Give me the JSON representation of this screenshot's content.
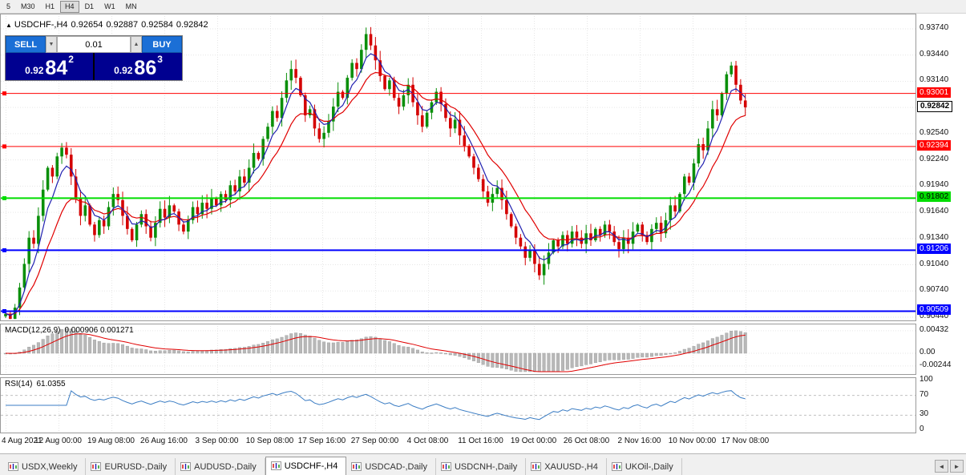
{
  "toolbar": {
    "timeframes": [
      "5",
      "M30",
      "H1",
      "H4",
      "D1",
      "W1",
      "MN"
    ],
    "active": "H4"
  },
  "icons": {
    "panel_toggle": "▲",
    "spin_up": "▲",
    "spin_down": "▼",
    "tabs_left": "◄",
    "tabs_right": "►"
  },
  "chart": {
    "symbol_period": "USDCHF-,H4",
    "ohlc": {
      "open": "0.92654",
      "high": "0.92887",
      "low": "0.92584",
      "close": "0.92842"
    }
  },
  "trade_panel": {
    "sell_label": "SELL",
    "buy_label": "BUY",
    "volume": "0.01",
    "sell_price": {
      "prefix": "0.92",
      "big": "84",
      "sup": "2"
    },
    "buy_price": {
      "prefix": "0.92",
      "big": "86",
      "sup": "3"
    }
  },
  "macd": {
    "title": "MACD(12,26,9)",
    "values_text": "0.000906 0.001271",
    "fast": 12,
    "slow": 26,
    "signal": 9,
    "axis": [
      {
        "label": "0.00432",
        "value": 0.00432
      },
      {
        "label": "0.00",
        "value": 0
      },
      {
        "label": "-0.00244",
        "value": -0.00244
      }
    ]
  },
  "rsi": {
    "title": "RSI(14)",
    "value_text": "61.0355",
    "period": 14,
    "levels": [
      70,
      30
    ],
    "axis": [
      {
        "label": "100",
        "value": 100
      },
      {
        "label": "70",
        "value": 70
      },
      {
        "label": "30",
        "value": 30
      },
      {
        "label": "0",
        "value": 0
      }
    ]
  },
  "colors": {
    "up": "#0a8f0a",
    "down": "#d40000",
    "ma_fast": "#2020b0",
    "ma_slow": "#e00000",
    "macd_hist": "#b8b8b8",
    "macd_hist_edge": "#9a9a9a",
    "macd_signal": "#e00000",
    "rsi_line": "#3b7dc4",
    "grid": "#e6e6e6",
    "line_red": "#ff0000",
    "line_green": "#00dd00",
    "line_blue": "#0000ff",
    "buy_sell_blue": "#1b6fd6",
    "price_navy": "#000090"
  },
  "hlines": [
    {
      "price": 0.93001,
      "label": "0.93001",
      "color": "#ff0000",
      "thickness": 1,
      "text_color": "#ffffff"
    },
    {
      "price": 0.92394,
      "label": "0.92394",
      "color": "#ff0000",
      "thickness": 1,
      "text_color": "#ffffff"
    },
    {
      "price": 0.91802,
      "label": "0.91802",
      "color": "#00dd00",
      "thickness": 2,
      "text_color": "#000000"
    },
    {
      "price": 0.91206,
      "label": "0.91206",
      "color": "#0000ff",
      "thickness": 2,
      "text_color": "#ffffff"
    },
    {
      "price": 0.90509,
      "label": "0.90509",
      "color": "#0000ff",
      "thickness": 2,
      "text_color": "#ffffff"
    }
  ],
  "current_price": {
    "label": "0.92842",
    "value": 0.92842
  },
  "chart_data": {
    "type": "candlestick",
    "symbol": "USDCHF-",
    "timeframe": "H4",
    "price_range": [
      0.9044,
      0.9374
    ],
    "price_ticks": [
      "0.93740",
      "0.93440",
      "0.93140",
      "0.92840",
      "0.92540",
      "0.92240",
      "0.91940",
      "0.91640",
      "0.91340",
      "0.91040",
      "0.90740",
      "0.90440"
    ],
    "time_labels": [
      "4 Aug 2021",
      "12 Aug 00:00",
      "19 Aug 08:00",
      "26 Aug 16:00",
      "3 Sep 00:00",
      "10 Sep 08:00",
      "17 Sep 16:00",
      "27 Sep 00:00",
      "4 Oct 08:00",
      "11 Oct 16:00",
      "19 Oct 00:00",
      "26 Oct 08:00",
      "2 Nov 16:00",
      "10 Nov 00:00",
      "17 Nov 08:00"
    ],
    "open_first": 0.9045,
    "closes": [
      0.9048,
      0.9042,
      0.9055,
      0.9078,
      0.9105,
      0.9135,
      0.9128,
      0.916,
      0.919,
      0.9215,
      0.9205,
      0.9228,
      0.9238,
      0.923,
      0.9205,
      0.918,
      0.916,
      0.9172,
      0.915,
      0.9138,
      0.9155,
      0.9148,
      0.917,
      0.9185,
      0.9178,
      0.916,
      0.9145,
      0.9132,
      0.915,
      0.9162,
      0.9148,
      0.9135,
      0.9152,
      0.9168,
      0.9158,
      0.9172,
      0.9165,
      0.915,
      0.9142,
      0.9155,
      0.917,
      0.9162,
      0.9175,
      0.9168,
      0.918,
      0.9172,
      0.9185,
      0.9178,
      0.9195,
      0.9188,
      0.9205,
      0.9198,
      0.9215,
      0.9232,
      0.9225,
      0.9248,
      0.9262,
      0.928,
      0.9272,
      0.9295,
      0.9315,
      0.9328,
      0.9318,
      0.9298,
      0.9275,
      0.9282,
      0.926,
      0.9248,
      0.9255,
      0.9268,
      0.9285,
      0.9302,
      0.9295,
      0.9318,
      0.9335,
      0.9328,
      0.935,
      0.9368,
      0.9355,
      0.9338,
      0.932,
      0.9305,
      0.9315,
      0.9295,
      0.9285,
      0.9298,
      0.931,
      0.929,
      0.9275,
      0.9262,
      0.9278,
      0.929,
      0.9302,
      0.9288,
      0.9272,
      0.926,
      0.927,
      0.9252,
      0.924,
      0.9228,
      0.9215,
      0.9202,
      0.9188,
      0.9175,
      0.9185,
      0.9192,
      0.9178,
      0.9162,
      0.9148,
      0.9135,
      0.9125,
      0.9112,
      0.912,
      0.9105,
      0.9092,
      0.9105,
      0.9118,
      0.9132,
      0.9125,
      0.9138,
      0.9128,
      0.9142,
      0.9135,
      0.9128,
      0.914,
      0.9132,
      0.9145,
      0.9138,
      0.915,
      0.9142,
      0.913,
      0.9122,
      0.9135,
      0.9128,
      0.9142,
      0.915,
      0.9138,
      0.913,
      0.9145,
      0.9152,
      0.914,
      0.9155,
      0.9172,
      0.9165,
      0.9185,
      0.9205,
      0.9198,
      0.922,
      0.9242,
      0.9235,
      0.926,
      0.9282,
      0.9275,
      0.93,
      0.9322,
      0.9332,
      0.931,
      0.9292,
      0.92842
    ]
  },
  "tabs": {
    "active_index": 3,
    "items": [
      "USDX,Weekly",
      "EURUSD-,Daily",
      "AUDUSD-,Daily",
      "USDCHF-,H4",
      "USDCAD-,Daily",
      "USDCNH-,Daily",
      "XAUUSD-,H4",
      "UKOil-,Daily"
    ]
  }
}
